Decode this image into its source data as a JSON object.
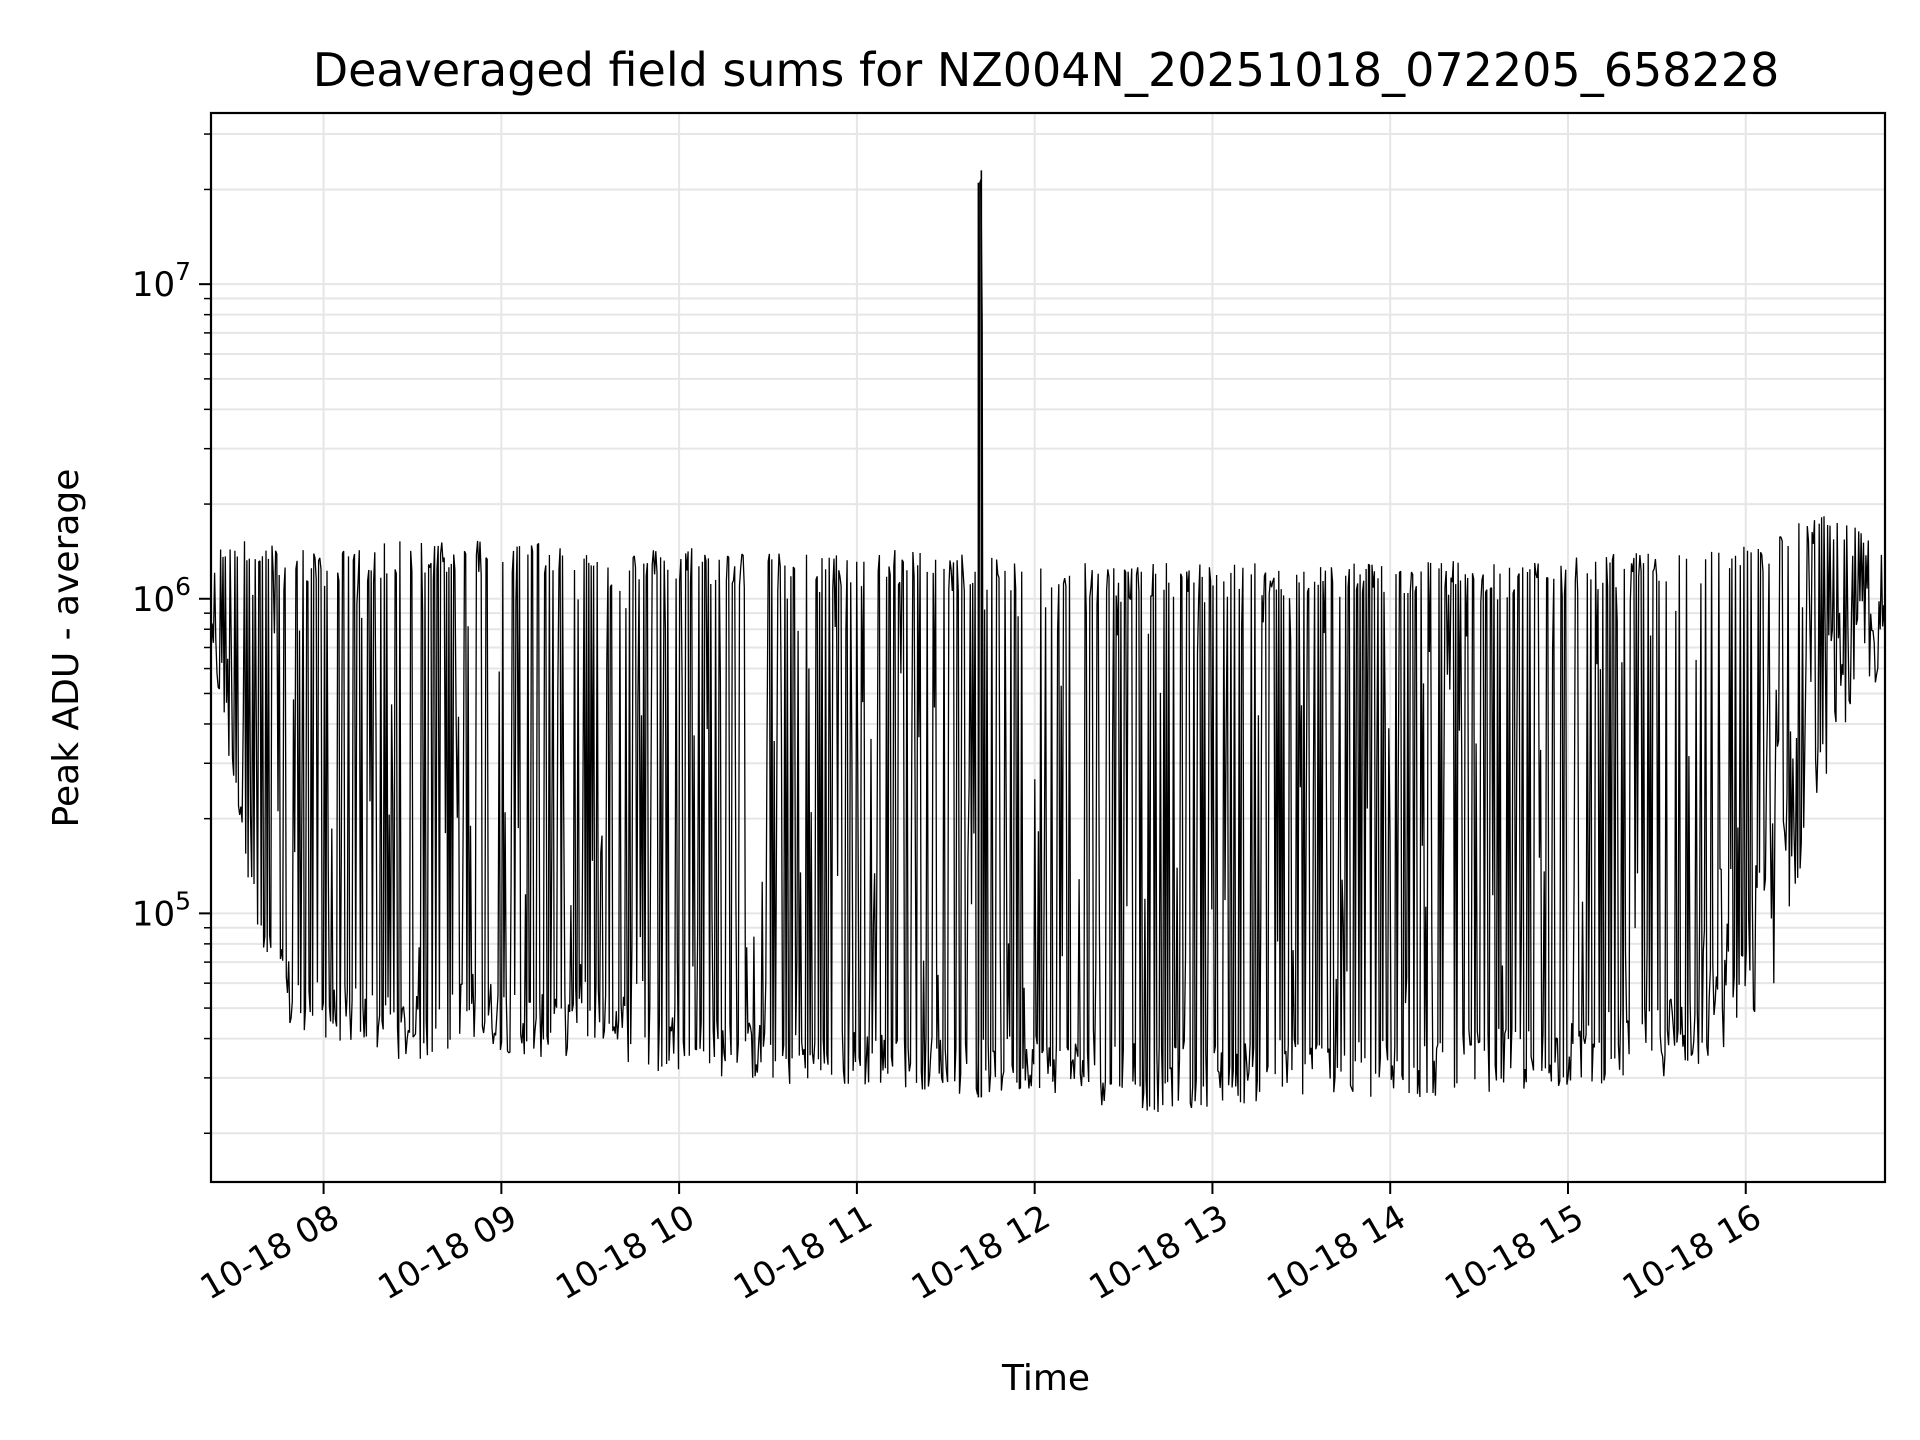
{
  "chart_data": {
    "type": "line",
    "title": "Deaveraged field sums for NZ004N_20251018_072205_658228",
    "xlabel": "Time",
    "ylabel": "Peak ADU - average",
    "yscale": "log",
    "ylim": [
      14000,
      35000000
    ],
    "xlim": [
      "10-18 07:22",
      "10-18 16:47"
    ],
    "grid": true,
    "grid_minor": true,
    "line_color": "#000000",
    "x_ticks": [
      "10-18 08",
      "10-18 09",
      "10-18 10",
      "10-18 11",
      "10-18 12",
      "10-18 13",
      "10-18 14",
      "10-18 15",
      "10-18 16"
    ],
    "y_ticks": [
      {
        "base": "10",
        "exp": "5",
        "value": 100000
      },
      {
        "base": "10",
        "exp": "6",
        "value": 1000000
      },
      {
        "base": "10",
        "exp": "7",
        "value": 10000000
      }
    ],
    "series": [
      {
        "x": [
          "10-18 07:22",
          "10-18 07:25",
          "10-18 07:28",
          "10-18 07:31",
          "10-18 07:34",
          "10-18 07:37",
          "10-18 07:40",
          "10-18 07:43",
          "10-18 07:46",
          "10-18 07:50",
          "10-18 07:55",
          "10-18 08:00",
          "10-18 08:10",
          "10-18 08:20",
          "10-18 08:30",
          "10-18 08:40",
          "10-18 08:50",
          "10-18 09:00",
          "10-18 09:10",
          "10-18 09:20",
          "10-18 09:30",
          "10-18 09:40",
          "10-18 09:50",
          "10-18 10:00",
          "10-18 10:15",
          "10-18 10:30",
          "10-18 10:45",
          "10-18 11:00",
          "10-18 11:15",
          "10-18 11:30",
          "10-18 11:40",
          "10-18 11:41",
          "10-18 11:42",
          "10-18 11:43",
          "10-18 11:44",
          "10-18 11:50",
          "10-18 12:00",
          "10-18 12:15",
          "10-18 12:30",
          "10-18 12:45",
          "10-18 13:00",
          "10-18 13:15",
          "10-18 13:30",
          "10-18 13:45",
          "10-18 14:00",
          "10-18 14:15",
          "10-18 14:30",
          "10-18 14:45",
          "10-18 15:00",
          "10-18 15:15",
          "10-18 15:30",
          "10-18 15:45",
          "10-18 16:00",
          "10-18 16:10",
          "10-18 16:20",
          "10-18 16:30",
          "10-18 16:40",
          "10-18 16:47"
        ],
        "y_min": [
          600000,
          450000,
          300000,
          220000,
          140000,
          90000,
          65000,
          55000,
          45000,
          40000,
          42000,
          40000,
          38000,
          35000,
          33000,
          35000,
          38000,
          36000,
          35000,
          34000,
          40000,
          35000,
          30000,
          32000,
          30000,
          29000,
          27000,
          28000,
          28000,
          27000,
          26000,
          26000,
          26000,
          26000,
          26000,
          26000,
          28000,
          25000,
          24000,
          23000,
          24000,
          25000,
          26000,
          25000,
          25000,
          26000,
          27000,
          27000,
          28000,
          29000,
          30000,
          32000,
          38000,
          60000,
          150000,
          350000,
          500000,
          550000
        ],
        "y_max": [
          1100000,
          1500000,
          1700000,
          1900000,
          1700000,
          1500000,
          1500000,
          1500000,
          1400000,
          1500000,
          1450000,
          1400000,
          1450000,
          1500000,
          1550000,
          1600000,
          1600000,
          1550000,
          1550000,
          1500000,
          1450000,
          1400000,
          1450000,
          1500000,
          1450000,
          1400000,
          1400000,
          1400000,
          1450000,
          1400000,
          1400000,
          21000000,
          23000000,
          1400000,
          1350000,
          1350000,
          1350000,
          1350000,
          1300000,
          1300000,
          1300000,
          1300000,
          1300000,
          1300000,
          1350000,
          1350000,
          1300000,
          1300000,
          1350000,
          1400000,
          1400000,
          1450000,
          1500000,
          1600000,
          1800000,
          1900000,
          1600000,
          1500000
        ],
        "y_median": [
          800000,
          700000,
          400000,
          300000,
          200000,
          120000,
          90000,
          80000,
          70000,
          65000,
          60000,
          55000,
          55000,
          52000,
          50000,
          55000,
          60000,
          55000,
          52000,
          50000,
          60000,
          55000,
          48000,
          45000,
          43000,
          42000,
          40000,
          40000,
          40000,
          38000,
          38000,
          38000,
          38000,
          38000,
          38000,
          38000,
          40000,
          37000,
          36000,
          35000,
          36000,
          37000,
          38000,
          37000,
          37000,
          38000,
          40000,
          40000,
          42000,
          45000,
          50000,
          60000,
          80000,
          200000,
          500000,
          800000,
          900000,
          900000
        ]
      }
    ]
  }
}
